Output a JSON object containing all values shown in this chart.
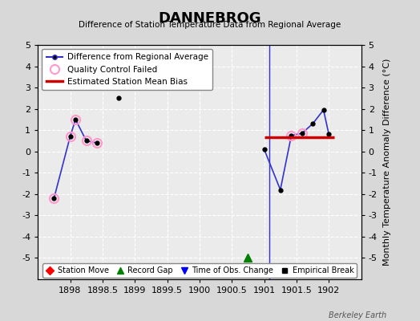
{
  "title": "DANNEBROG",
  "subtitle": "Difference of Station Temperature Data from Regional Average",
  "ylabel": "Monthly Temperature Anomaly Difference (°C)",
  "xlim": [
    1897.5,
    1902.5
  ],
  "ylim": [
    -6,
    5
  ],
  "yticks": [
    -5,
    -4,
    -3,
    -2,
    -1,
    0,
    1,
    2,
    3,
    4,
    5
  ],
  "xticks": [
    1898,
    1898.5,
    1899,
    1899.5,
    1900,
    1900.5,
    1901,
    1901.5,
    1902
  ],
  "xtick_labels": [
    "1898",
    "1898.5",
    "1899",
    "1899.5",
    "1900",
    "1900.5",
    "1901",
    "1901.5",
    "1902"
  ],
  "seg1_x": [
    1897.75,
    1898.0,
    1898.083,
    1898.25,
    1898.417
  ],
  "seg1_y": [
    -2.2,
    0.7,
    1.5,
    0.5,
    0.4
  ],
  "isolated_x": [
    1898.75
  ],
  "isolated_y": [
    2.5
  ],
  "seg2_x": [
    1901.0,
    1901.25,
    1901.42,
    1901.583,
    1901.75,
    1901.917,
    1902.0
  ],
  "seg2_y": [
    0.1,
    -1.8,
    0.75,
    0.85,
    1.3,
    1.95,
    0.8
  ],
  "qc_x": [
    1897.75,
    1898.0,
    1898.083,
    1898.25,
    1898.417,
    1901.42,
    1901.583
  ],
  "qc_y": [
    -2.2,
    0.7,
    1.5,
    0.5,
    0.4,
    0.75,
    0.85
  ],
  "bias_x_start": 1901.0,
  "bias_x_end": 1902.08,
  "bias_y": 0.68,
  "vertical_line_x": 1901.08,
  "record_gap_x": 1900.75,
  "record_gap_y": -5.0,
  "bg_color": "#d8d8d8",
  "plot_bg_color": "#ebebeb",
  "line_color": "#3333cc",
  "bias_color": "#cc0000",
  "qc_edge_color": "#ff99cc",
  "grid_color": "#ffffff",
  "grid_ls": "--"
}
